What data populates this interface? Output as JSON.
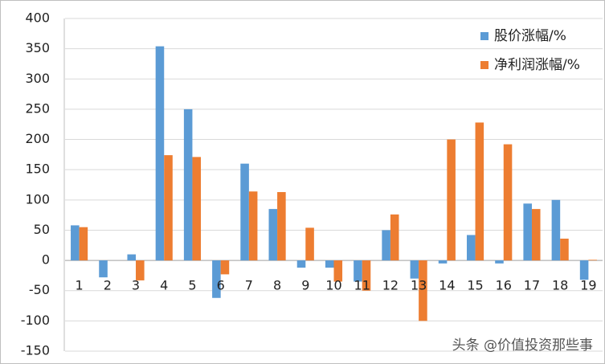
{
  "chart_data": {
    "type": "bar",
    "categories": [
      "1",
      "2",
      "3",
      "4",
      "5",
      "6",
      "7",
      "8",
      "9",
      "10",
      "11",
      "12",
      "13",
      "14",
      "15",
      "16",
      "17",
      "18",
      "19"
    ],
    "series": [
      {
        "name": "股价涨幅/%",
        "color": "#5b9bd5",
        "values": [
          58,
          -28,
          10,
          354,
          250,
          -62,
          160,
          85,
          -12,
          -12,
          -35,
          50,
          -30,
          -5,
          42,
          -5,
          94,
          100,
          -32
        ]
      },
      {
        "name": "净利润涨幅/%",
        "color": "#ed7d31",
        "values": [
          55,
          0,
          -33,
          174,
          171,
          -23,
          114,
          113,
          54,
          -35,
          -50,
          76,
          -100,
          200,
          228,
          192,
          85,
          36,
          1
        ]
      }
    ],
    "ylim": [
      -150,
      400
    ],
    "yticks": [
      -150,
      -100,
      -50,
      0,
      50,
      100,
      150,
      200,
      250,
      300,
      350,
      400
    ],
    "grid": true,
    "legend": "top-right",
    "watermark": "头条 @价值投资那些事"
  }
}
